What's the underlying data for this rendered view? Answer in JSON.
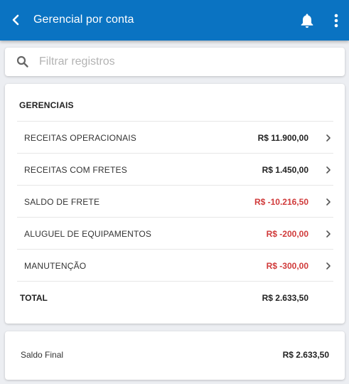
{
  "appbar": {
    "title": "Gerencial por conta",
    "back_icon": "arrow-left-icon",
    "bell_icon": "bell-icon",
    "more_icon": "more-vertical-icon",
    "color": "#0a73c2"
  },
  "search": {
    "placeholder": "Filtrar registros",
    "value": ""
  },
  "gerenciais": {
    "section_title": "GERENCIAIS",
    "items": [
      {
        "label": "RECEITAS OPERACIONAIS",
        "value": "R$ 11.900,00",
        "negative": false
      },
      {
        "label": "RECEITAS COM FRETES",
        "value": "R$ 1.450,00",
        "negative": false
      },
      {
        "label": "SALDO DE FRETE",
        "value": "R$ -10.216,50",
        "negative": true
      },
      {
        "label": "ALUGUEL DE EQUIPAMENTOS",
        "value": "R$ -200,00",
        "negative": true
      },
      {
        "label": "MANUTENÇÃO",
        "value": "R$ -300,00",
        "negative": true
      }
    ],
    "total_label": "TOTAL",
    "total_value": "R$ 2.633,50"
  },
  "saldo": {
    "label": "Saldo Final",
    "value": "R$ 2.633,50"
  },
  "colors": {
    "negative": "#d03a3a",
    "primary": "#0a73c2"
  }
}
